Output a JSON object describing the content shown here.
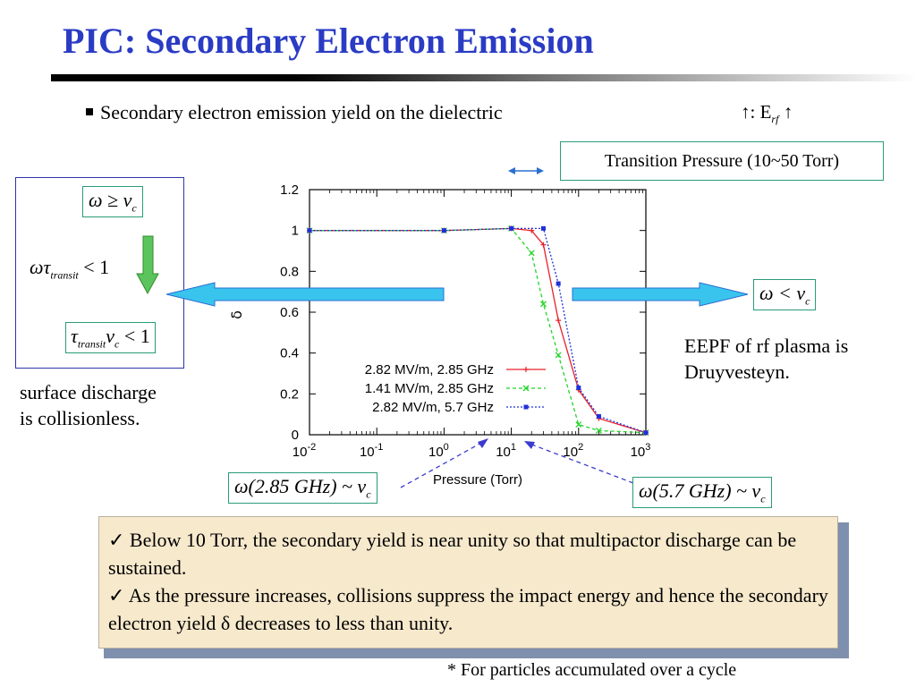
{
  "slide": {
    "title": "PIC: Secondary Electron Emission",
    "bullet": "Secondary electron emission yield on the dielectric",
    "erf_note": {
      "prefix": "↑:  E",
      "sub": "rf",
      "suffix": " ↑"
    },
    "transition_box": "Transition Pressure (10~50 Torr)",
    "left_panel": {
      "box_top": {
        "lhs": "ω ≥ ν",
        "sub": "c"
      },
      "middle": {
        "a": "ωτ",
        "sub": "transit",
        "b": " < 1"
      },
      "box_bottom": {
        "a": "τ",
        "sub1": "transit",
        "b": "ν",
        "sub2": "c",
        "c": " < 1"
      }
    },
    "right_box": {
      "lhs": "ω < ν",
      "sub": "c"
    },
    "surface_text": [
      "surface discharge",
      "is collisionless."
    ],
    "eepf_text": [
      "EEPF of rf plasma is",
      "Druyvesteyn."
    ],
    "box_285": {
      "a": "ω(2.85 GHz) ~ ν",
      "sub": "c"
    },
    "box_57": {
      "a": "ω(5.7 GHz) ~ ν",
      "sub": "c"
    },
    "summary": [
      "✓ Below 10 Torr, the secondary yield is near unity so that multipactor discharge can be sustained.",
      "✓ As the pressure increases, collisions suppress the impact energy and hence the secondary electron yield δ decreases to less than unity."
    ],
    "footnote": "* For particles accumulated over a cycle"
  },
  "colors": {
    "title": "#2a3bc4",
    "arrow_fill": "#39c4ee",
    "arrow_stroke": "#2a6fd0",
    "teal_border": "#2a9b7a",
    "green_arrow": "#5cc45c",
    "summary_bg": "#f7e9cc",
    "dashed_pointer": "#3a3ad0"
  },
  "chart_data": {
    "type": "line",
    "xlabel": "Pressure (Torr)",
    "ylabel": "δ",
    "xscale": "log",
    "xlim": [
      0.01,
      1000
    ],
    "ylim": [
      0,
      1.2
    ],
    "xticks": [
      {
        "value": 0.01,
        "base": "10",
        "exp": "-2"
      },
      {
        "value": 0.1,
        "base": "10",
        "exp": "-1"
      },
      {
        "value": 1,
        "base": "10",
        "exp": "0"
      },
      {
        "value": 10,
        "base": "10",
        "exp": "1"
      },
      {
        "value": 100,
        "base": "10",
        "exp": "2"
      },
      {
        "value": 1000,
        "base": "10",
        "exp": "3"
      }
    ],
    "yticks": [
      {
        "value": 0,
        "label": "0"
      },
      {
        "value": 0.2,
        "label": "0.2"
      },
      {
        "value": 0.4,
        "label": "0.4"
      },
      {
        "value": 0.6,
        "label": "0.6"
      },
      {
        "value": 0.8,
        "label": "0.8"
      },
      {
        "value": 1,
        "label": "1"
      },
      {
        "value": 1.2,
        "label": "1.2"
      }
    ],
    "legend_position": "bottom-left",
    "grid": false,
    "series": [
      {
        "name": "2.82 MV/m, 2.85 GHz",
        "color": "#e8202a",
        "dash": "solid",
        "marker": "plus",
        "x": [
          0.01,
          1,
          10,
          20,
          30,
          50,
          100,
          200,
          1000
        ],
        "y": [
          1.0,
          1.0,
          1.01,
          1.0,
          0.93,
          0.56,
          0.22,
          0.08,
          0.01
        ]
      },
      {
        "name": "1.41 MV/m, 2.85 GHz",
        "color": "#22d428",
        "dash": "dashed",
        "marker": "cross",
        "x": [
          0.01,
          1,
          10,
          20,
          30,
          50,
          100,
          200,
          1000
        ],
        "y": [
          1.0,
          1.0,
          1.01,
          0.89,
          0.64,
          0.39,
          0.05,
          0.02,
          0.01
        ]
      },
      {
        "name": "2.82 MV/m, 5.7 GHz",
        "color": "#2030d8",
        "dash": "dotted",
        "marker": "square",
        "x": [
          0.01,
          1,
          10,
          30,
          50,
          100,
          200,
          1000
        ],
        "y": [
          1.0,
          1.0,
          1.01,
          1.01,
          0.74,
          0.23,
          0.09,
          0.01
        ]
      }
    ]
  }
}
